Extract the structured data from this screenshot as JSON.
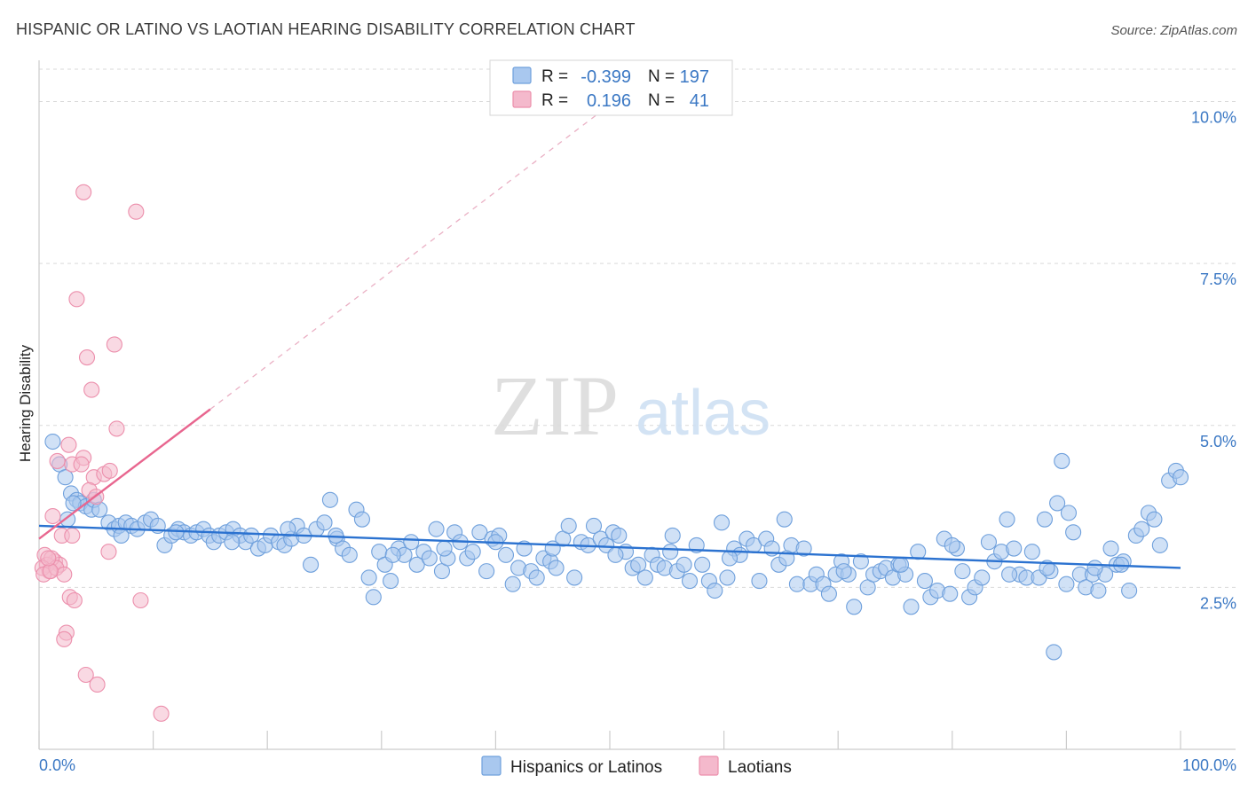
{
  "header": {
    "title": "HISPANIC OR LATINO VS LAOTIAN HEARING DISABILITY CORRELATION CHART",
    "source": "Source: ZipAtlas.com"
  },
  "watermark": {
    "zip": "ZIP",
    "atlas": "atlas"
  },
  "colors": {
    "blue_fill": "#a9c8ef",
    "blue_stroke": "#6fa0dc",
    "blue_line": "#2b72d0",
    "pink_fill": "#f4b9cc",
    "pink_stroke": "#ec8fac",
    "pink_line": "#e8668f",
    "tick_text": "#3b78c4",
    "grid": "#d9d9d9"
  },
  "legend_top": {
    "rows": [
      {
        "r_label": "R =",
        "r_value": "-0.399",
        "n_label": "N =",
        "n_value": "197"
      },
      {
        "r_label": "R =",
        "r_value": "0.196",
        "n_label": "N =",
        "n_value": "41"
      }
    ]
  },
  "legend_bottom": {
    "items": [
      {
        "label": "Hispanics or Latinos"
      },
      {
        "label": "Laotians"
      }
    ]
  },
  "chart_data": {
    "type": "scatter",
    "title": "HISPANIC OR LATINO VS LAOTIAN HEARING DISABILITY CORRELATION CHART",
    "xlabel": "",
    "ylabel": "Hearing Disability",
    "xlim": [
      0,
      100
    ],
    "ylim": [
      0,
      10.5
    ],
    "x_tick_labels": [
      {
        "value": 0,
        "label": "0.0%"
      },
      {
        "value": 100,
        "label": "100.0%"
      }
    ],
    "x_minor_ticks": [
      0,
      10,
      20,
      30,
      40,
      50,
      60,
      70,
      80,
      90,
      100
    ],
    "y_ticks": [
      {
        "value": 2.5,
        "label": "2.5%"
      },
      {
        "value": 5.0,
        "label": "5.0%"
      },
      {
        "value": 7.5,
        "label": "7.5%"
      },
      {
        "value": 10.0,
        "label": "10.0%"
      }
    ],
    "grid": true,
    "legend_position": "top-center",
    "series": [
      {
        "name": "Hispanics or Latinos",
        "color": "#a9c8ef",
        "regression": {
          "x": [
            0,
            100
          ],
          "y": [
            3.45,
            2.8
          ]
        },
        "points": [
          [
            1.2,
            4.75
          ],
          [
            1.8,
            4.4
          ],
          [
            2.3,
            4.2
          ],
          [
            2.8,
            3.95
          ],
          [
            3.3,
            3.85
          ],
          [
            3.6,
            3.8
          ],
          [
            4.1,
            3.75
          ],
          [
            4.6,
            3.7
          ],
          [
            4.8,
            3.85
          ],
          [
            5.3,
            3.7
          ],
          [
            6.1,
            3.5
          ],
          [
            6.6,
            3.4
          ],
          [
            7.0,
            3.45
          ],
          [
            7.6,
            3.5
          ],
          [
            8.1,
            3.45
          ],
          [
            8.6,
            3.4
          ],
          [
            9.3,
            3.5
          ],
          [
            9.8,
            3.55
          ],
          [
            10.4,
            3.45
          ],
          [
            11.0,
            3.15
          ],
          [
            11.6,
            3.3
          ],
          [
            12.2,
            3.4
          ],
          [
            12.7,
            3.35
          ],
          [
            13.3,
            3.3
          ],
          [
            13.8,
            3.35
          ],
          [
            14.4,
            3.4
          ],
          [
            14.9,
            3.3
          ],
          [
            15.3,
            3.2
          ],
          [
            15.8,
            3.3
          ],
          [
            16.4,
            3.35
          ],
          [
            17.0,
            3.4
          ],
          [
            17.6,
            3.3
          ],
          [
            18.1,
            3.2
          ],
          [
            18.6,
            3.3
          ],
          [
            19.2,
            3.1
          ],
          [
            19.8,
            3.15
          ],
          [
            20.3,
            3.3
          ],
          [
            21.0,
            3.2
          ],
          [
            21.5,
            3.15
          ],
          [
            22.1,
            3.25
          ],
          [
            22.6,
            3.45
          ],
          [
            23.2,
            3.3
          ],
          [
            23.8,
            2.85
          ],
          [
            24.3,
            3.4
          ],
          [
            25.0,
            3.5
          ],
          [
            25.5,
            3.85
          ],
          [
            26.1,
            3.25
          ],
          [
            26.6,
            3.1
          ],
          [
            27.2,
            3.0
          ],
          [
            27.8,
            3.7
          ],
          [
            28.3,
            3.55
          ],
          [
            28.9,
            2.65
          ],
          [
            29.3,
            2.35
          ],
          [
            29.8,
            3.05
          ],
          [
            30.3,
            2.85
          ],
          [
            30.8,
            2.6
          ],
          [
            31.5,
            3.1
          ],
          [
            32.0,
            3.0
          ],
          [
            32.6,
            3.2
          ],
          [
            33.1,
            2.85
          ],
          [
            33.7,
            3.05
          ],
          [
            34.2,
            2.95
          ],
          [
            34.8,
            3.4
          ],
          [
            35.3,
            2.75
          ],
          [
            35.8,
            2.95
          ],
          [
            36.4,
            3.35
          ],
          [
            36.9,
            3.2
          ],
          [
            37.5,
            2.95
          ],
          [
            38.0,
            3.05
          ],
          [
            38.6,
            3.35
          ],
          [
            39.2,
            2.75
          ],
          [
            39.7,
            3.25
          ],
          [
            40.3,
            3.3
          ],
          [
            40.9,
            3.0
          ],
          [
            41.5,
            2.55
          ],
          [
            42.0,
            2.8
          ],
          [
            42.5,
            3.1
          ],
          [
            43.1,
            2.75
          ],
          [
            43.6,
            2.65
          ],
          [
            44.2,
            2.95
          ],
          [
            44.8,
            2.9
          ],
          [
            45.3,
            2.8
          ],
          [
            45.9,
            3.25
          ],
          [
            46.4,
            3.45
          ],
          [
            46.9,
            2.65
          ],
          [
            47.5,
            3.2
          ],
          [
            48.1,
            3.15
          ],
          [
            48.6,
            3.45
          ],
          [
            49.2,
            3.25
          ],
          [
            49.7,
            3.15
          ],
          [
            50.3,
            3.35
          ],
          [
            50.8,
            3.3
          ],
          [
            51.4,
            3.05
          ],
          [
            52.0,
            2.8
          ],
          [
            52.5,
            2.85
          ],
          [
            53.1,
            2.65
          ],
          [
            53.7,
            3.0
          ],
          [
            54.2,
            2.85
          ],
          [
            54.8,
            2.8
          ],
          [
            55.3,
            3.05
          ],
          [
            55.9,
            2.75
          ],
          [
            56.5,
            2.85
          ],
          [
            57.0,
            2.6
          ],
          [
            57.6,
            3.15
          ],
          [
            58.1,
            2.85
          ],
          [
            58.7,
            2.6
          ],
          [
            59.2,
            2.45
          ],
          [
            59.8,
            3.5
          ],
          [
            60.3,
            2.65
          ],
          [
            60.9,
            3.1
          ],
          [
            61.4,
            3.0
          ],
          [
            62.0,
            3.25
          ],
          [
            62.6,
            3.15
          ],
          [
            63.1,
            2.6
          ],
          [
            63.7,
            3.25
          ],
          [
            64.2,
            3.1
          ],
          [
            64.8,
            2.85
          ],
          [
            65.3,
            3.55
          ],
          [
            65.9,
            3.15
          ],
          [
            66.4,
            2.55
          ],
          [
            67.0,
            3.1
          ],
          [
            67.6,
            2.55
          ],
          [
            68.1,
            2.7
          ],
          [
            68.7,
            2.55
          ],
          [
            69.2,
            2.4
          ],
          [
            69.8,
            2.7
          ],
          [
            70.3,
            2.9
          ],
          [
            70.9,
            2.7
          ],
          [
            71.4,
            2.2
          ],
          [
            72.0,
            2.9
          ],
          [
            72.6,
            2.5
          ],
          [
            73.1,
            2.7
          ],
          [
            73.7,
            2.75
          ],
          [
            74.2,
            2.8
          ],
          [
            74.8,
            2.65
          ],
          [
            75.3,
            2.85
          ],
          [
            75.9,
            2.7
          ],
          [
            76.4,
            2.2
          ],
          [
            77.0,
            3.05
          ],
          [
            77.6,
            2.6
          ],
          [
            78.1,
            2.35
          ],
          [
            78.7,
            2.45
          ],
          [
            79.3,
            3.25
          ],
          [
            79.8,
            2.4
          ],
          [
            80.4,
            3.1
          ],
          [
            80.9,
            2.75
          ],
          [
            81.5,
            2.35
          ],
          [
            82.0,
            2.5
          ],
          [
            82.6,
            2.65
          ],
          [
            83.2,
            3.2
          ],
          [
            83.7,
            2.9
          ],
          [
            84.3,
            3.05
          ],
          [
            84.8,
            3.55
          ],
          [
            85.4,
            3.1
          ],
          [
            85.9,
            2.7
          ],
          [
            86.5,
            2.65
          ],
          [
            87.0,
            3.05
          ],
          [
            87.6,
            2.65
          ],
          [
            88.1,
            3.55
          ],
          [
            88.6,
            2.75
          ],
          [
            89.2,
            3.8
          ],
          [
            89.6,
            4.45
          ],
          [
            90.2,
            3.65
          ],
          [
            90.6,
            3.35
          ],
          [
            91.2,
            2.7
          ],
          [
            91.7,
            2.5
          ],
          [
            92.3,
            2.7
          ],
          [
            92.8,
            2.45
          ],
          [
            93.4,
            2.7
          ],
          [
            93.9,
            3.1
          ],
          [
            94.4,
            2.85
          ],
          [
            95.0,
            2.9
          ],
          [
            95.5,
            2.45
          ],
          [
            96.1,
            3.3
          ],
          [
            96.6,
            3.4
          ],
          [
            97.2,
            3.65
          ],
          [
            97.7,
            3.55
          ],
          [
            98.2,
            3.15
          ],
          [
            99.0,
            4.15
          ],
          [
            99.6,
            4.3
          ],
          [
            100.0,
            4.2
          ],
          [
            88.9,
            1.5
          ],
          [
            92.5,
            2.8
          ],
          [
            88.3,
            2.8
          ],
          [
            94.8,
            2.85
          ],
          [
            50.5,
            3.0
          ],
          [
            45.0,
            3.1
          ],
          [
            40.0,
            3.2
          ],
          [
            35.5,
            3.1
          ],
          [
            31.0,
            3.0
          ],
          [
            26.0,
            3.3
          ],
          [
            21.8,
            3.4
          ],
          [
            16.9,
            3.2
          ],
          [
            12.0,
            3.35
          ],
          [
            7.2,
            3.3
          ],
          [
            2.5,
            3.55
          ],
          [
            3.0,
            3.8
          ],
          [
            55.5,
            3.3
          ],
          [
            60.5,
            2.95
          ],
          [
            65.5,
            2.95
          ],
          [
            70.5,
            2.75
          ],
          [
            75.5,
            2.85
          ],
          [
            80.0,
            3.15
          ],
          [
            85.0,
            2.7
          ],
          [
            90.0,
            2.55
          ]
        ]
      },
      {
        "name": "Laotians",
        "color": "#f4b9cc",
        "regression": {
          "x": [
            0,
            15
          ],
          "y": [
            3.25,
            5.25
          ]
        },
        "regression_dashed": {
          "x": [
            15,
            50
          ],
          "y": [
            5.25,
            9.95
          ]
        },
        "points": [
          [
            3.9,
            8.6
          ],
          [
            8.5,
            8.3
          ],
          [
            3.3,
            6.95
          ],
          [
            4.2,
            6.05
          ],
          [
            6.6,
            6.25
          ],
          [
            4.6,
            5.55
          ],
          [
            6.8,
            4.95
          ],
          [
            1.6,
            4.45
          ],
          [
            2.6,
            4.7
          ],
          [
            2.9,
            4.4
          ],
          [
            3.9,
            4.5
          ],
          [
            3.7,
            4.4
          ],
          [
            4.8,
            4.2
          ],
          [
            5.7,
            4.25
          ],
          [
            6.2,
            4.3
          ],
          [
            4.4,
            4.0
          ],
          [
            5.0,
            3.9
          ],
          [
            1.2,
            3.6
          ],
          [
            2.0,
            3.3
          ],
          [
            2.9,
            3.3
          ],
          [
            6.1,
            3.05
          ],
          [
            1.4,
            2.9
          ],
          [
            1.8,
            2.85
          ],
          [
            0.5,
            3.0
          ],
          [
            0.7,
            2.85
          ],
          [
            0.9,
            2.75
          ],
          [
            1.1,
            2.95
          ],
          [
            0.3,
            2.8
          ],
          [
            0.4,
            2.7
          ],
          [
            1.5,
            2.8
          ],
          [
            2.2,
            2.7
          ],
          [
            1.0,
            2.75
          ],
          [
            2.7,
            2.35
          ],
          [
            3.1,
            2.3
          ],
          [
            8.9,
            2.3
          ],
          [
            2.4,
            1.8
          ],
          [
            2.2,
            1.7
          ],
          [
            4.1,
            1.15
          ],
          [
            5.1,
            1.0
          ],
          [
            10.7,
            0.55
          ],
          [
            0.8,
            2.95
          ]
        ]
      }
    ]
  }
}
